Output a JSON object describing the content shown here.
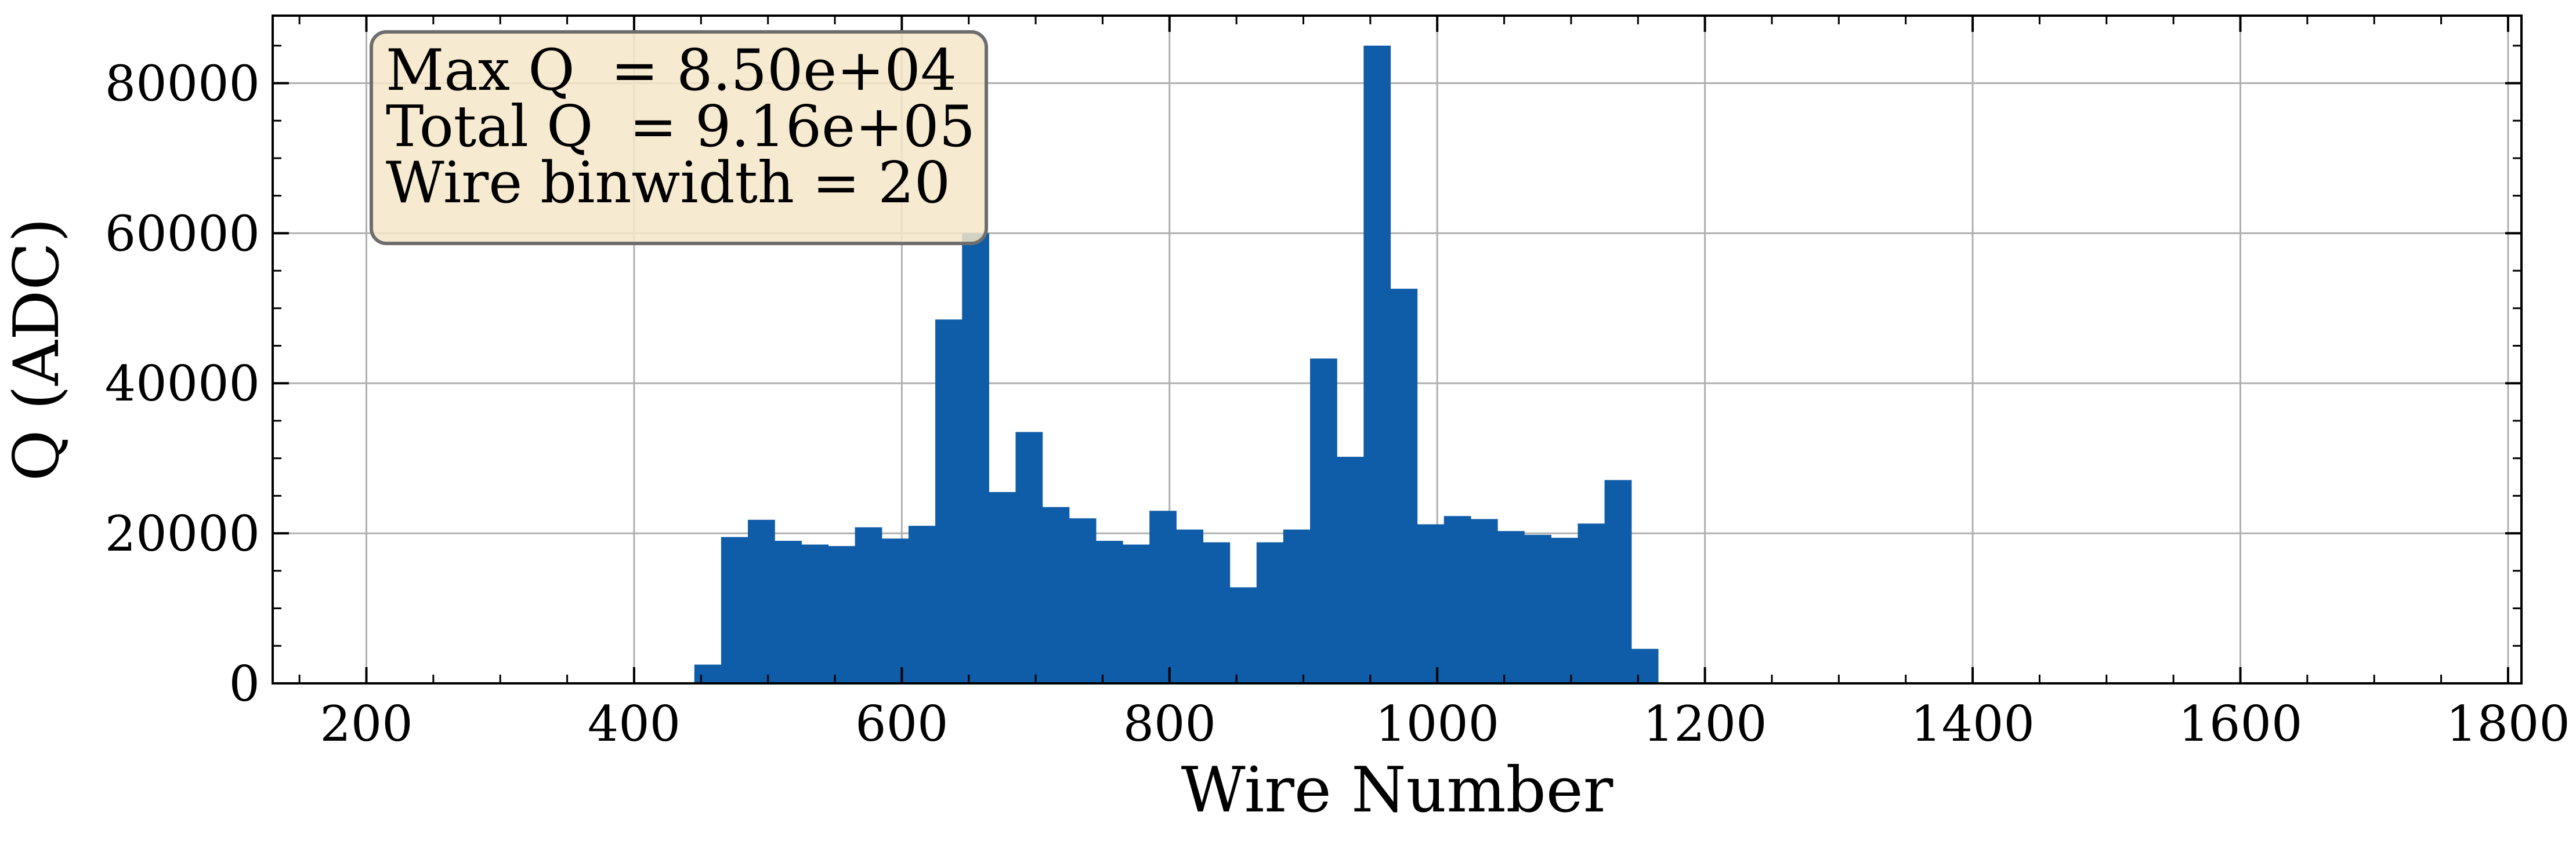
{
  "chart_data": {
    "type": "bar",
    "xlabel": "Wire Number",
    "ylabel": "Q (ADC)",
    "xlim": [
      130,
      1810
    ],
    "ylim": [
      0,
      89000
    ],
    "x_ticks": [
      200,
      400,
      600,
      800,
      1000,
      1200,
      1400,
      1600,
      1800
    ],
    "y_ticks": [
      0,
      20000,
      40000,
      60000,
      80000
    ],
    "grid": true,
    "bar_color": "#0f5ca8",
    "bin_width": 20,
    "bins": [
      {
        "x0": 445,
        "x1": 465,
        "value": 2500
      },
      {
        "x0": 465,
        "x1": 485,
        "value": 19500
      },
      {
        "x0": 485,
        "x1": 505,
        "value": 21800
      },
      {
        "x0": 505,
        "x1": 525,
        "value": 19000
      },
      {
        "x0": 525,
        "x1": 545,
        "value": 18500
      },
      {
        "x0": 545,
        "x1": 565,
        "value": 18300
      },
      {
        "x0": 565,
        "x1": 585,
        "value": 20800
      },
      {
        "x0": 585,
        "x1": 605,
        "value": 19300
      },
      {
        "x0": 605,
        "x1": 625,
        "value": 21000
      },
      {
        "x0": 625,
        "x1": 645,
        "value": 48500
      },
      {
        "x0": 645,
        "x1": 665,
        "value": 60000
      },
      {
        "x0": 665,
        "x1": 685,
        "value": 25500
      },
      {
        "x0": 685,
        "x1": 705,
        "value": 33500
      },
      {
        "x0": 705,
        "x1": 725,
        "value": 23500
      },
      {
        "x0": 725,
        "x1": 745,
        "value": 22000
      },
      {
        "x0": 745,
        "x1": 765,
        "value": 19000
      },
      {
        "x0": 765,
        "x1": 785,
        "value": 18500
      },
      {
        "x0": 785,
        "x1": 805,
        "value": 23000
      },
      {
        "x0": 805,
        "x1": 825,
        "value": 20500
      },
      {
        "x0": 825,
        "x1": 845,
        "value": 18800
      },
      {
        "x0": 845,
        "x1": 865,
        "value": 12800
      },
      {
        "x0": 865,
        "x1": 885,
        "value": 18800
      },
      {
        "x0": 885,
        "x1": 905,
        "value": 20500
      },
      {
        "x0": 905,
        "x1": 925,
        "value": 43300
      },
      {
        "x0": 925,
        "x1": 945,
        "value": 30200
      },
      {
        "x0": 945,
        "x1": 965,
        "value": 85000
      },
      {
        "x0": 965,
        "x1": 985,
        "value": 52600
      },
      {
        "x0": 985,
        "x1": 1005,
        "value": 21200
      },
      {
        "x0": 1005,
        "x1": 1025,
        "value": 22300
      },
      {
        "x0": 1025,
        "x1": 1045,
        "value": 21900
      },
      {
        "x0": 1045,
        "x1": 1065,
        "value": 20300
      },
      {
        "x0": 1065,
        "x1": 1085,
        "value": 19800
      },
      {
        "x0": 1085,
        "x1": 1105,
        "value": 19400
      },
      {
        "x0": 1105,
        "x1": 1125,
        "value": 21300
      },
      {
        "x0": 1125,
        "x1": 1145,
        "value": 27100
      },
      {
        "x0": 1145,
        "x1": 1165,
        "value": 4600
      }
    ],
    "stats_box": {
      "lines": [
        "Max Q  = 8.50e+04",
        "Total Q  = 9.16e+05",
        "Wire binwidth = 20"
      ],
      "background": "#f5e6c8"
    }
  }
}
